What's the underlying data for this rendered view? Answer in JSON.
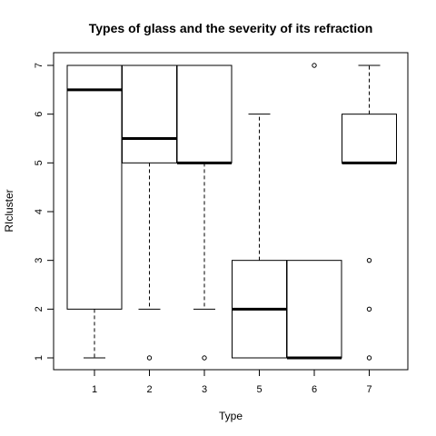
{
  "chart_data": {
    "type": "boxplot",
    "title": "Types of glass and the severity of its refraction",
    "xlabel": "Type",
    "ylabel": "RIcluster",
    "categories": [
      "1",
      "2",
      "3",
      "5",
      "6",
      "7"
    ],
    "yticks": [
      1,
      2,
      3,
      4,
      5,
      6,
      7
    ],
    "ylim": [
      1,
      7
    ],
    "boxes": [
      {
        "category": "1",
        "whisker_low": 1,
        "q1": 2,
        "median": 6.5,
        "q3": 7,
        "whisker_high": 7,
        "outliers": []
      },
      {
        "category": "2",
        "whisker_low": 2,
        "q1": 5,
        "median": 5.5,
        "q3": 7,
        "whisker_high": 7,
        "outliers": [
          1
        ]
      },
      {
        "category": "3",
        "whisker_low": 2,
        "q1": 5,
        "median": 5,
        "q3": 7,
        "whisker_high": 7,
        "outliers": [
          1
        ]
      },
      {
        "category": "5",
        "whisker_low": 1,
        "q1": 1,
        "median": 2,
        "q3": 3,
        "whisker_high": 6,
        "outliers": []
      },
      {
        "category": "6",
        "whisker_low": 1,
        "q1": 1,
        "median": 1,
        "q3": 3,
        "whisker_high": 3,
        "outliers": [
          7
        ]
      },
      {
        "category": "7",
        "whisker_low": 5,
        "q1": 5,
        "median": 5,
        "q3": 6,
        "whisker_high": 7,
        "outliers": [
          1,
          2,
          3
        ]
      }
    ],
    "grid": false,
    "colors": {
      "stroke": "#000000",
      "fill": "#ffffff"
    }
  }
}
